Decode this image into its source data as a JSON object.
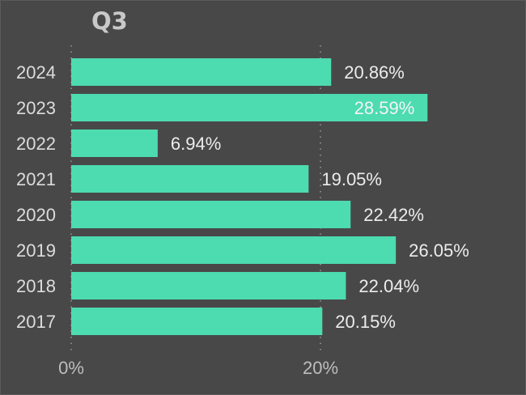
{
  "chart_data": {
    "type": "bar",
    "orientation": "horizontal",
    "title": "Q3",
    "xlabel": "",
    "ylabel": "",
    "categories": [
      "2024",
      "2023",
      "2022",
      "2021",
      "2020",
      "2019",
      "2018",
      "2017"
    ],
    "values": [
      20.86,
      28.59,
      6.94,
      19.05,
      22.42,
      26.05,
      22.04,
      20.15
    ],
    "value_labels": [
      "20.86%",
      "28.59%",
      "6.94%",
      "19.05%",
      "22.42%",
      "26.05%",
      "22.04%",
      "20.15%"
    ],
    "x_ticks": [
      {
        "value": 0,
        "label": "0%"
      },
      {
        "value": 20,
        "label": "20%"
      }
    ],
    "xlim": [
      0,
      34
    ],
    "grid": true,
    "legend": "none",
    "colors": {
      "bar": "#4ddbb0",
      "background": "#484848",
      "grid": "#9a9a9a"
    }
  }
}
